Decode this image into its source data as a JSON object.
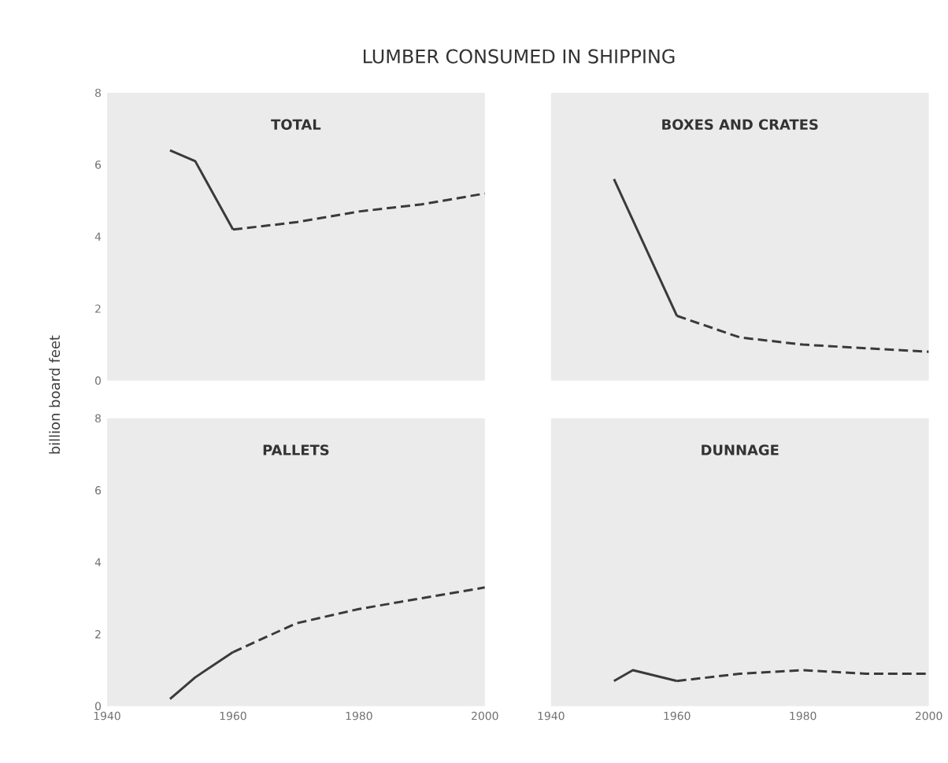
{
  "chart_data": [
    {
      "type": "line",
      "title": "LUMBER CONSUMED IN SHIPPING",
      "subtitle": "TOTAL",
      "ylabel": "billion board feet",
      "xlim": [
        1940,
        2000
      ],
      "ylim": [
        0,
        8
      ],
      "xticks": [
        1940,
        1960,
        1980,
        2000
      ],
      "yticks": [
        0,
        2,
        4,
        6,
        8
      ],
      "tick_labels": "y",
      "grid": false,
      "series": [
        {
          "color": "#3a3a3a",
          "line_style": "solid",
          "x": [
            1950,
            1954,
            1960
          ],
          "values": [
            6.4,
            6.1,
            4.2
          ]
        },
        {
          "color": "#3a3a3a",
          "line_style": "dashed",
          "x": [
            1960,
            1970,
            1980,
            1990,
            2000
          ],
          "values": [
            4.2,
            4.4,
            4.7,
            4.9,
            5.2
          ]
        }
      ]
    },
    {
      "type": "line",
      "subtitle": "BOXES AND CRATES",
      "xlim": [
        1940,
        2000
      ],
      "ylim": [
        0,
        8
      ],
      "xticks": [
        1940,
        1960,
        1980,
        2000
      ],
      "yticks": [
        0,
        2,
        4,
        6,
        8
      ],
      "tick_labels": false,
      "grid": false,
      "series": [
        {
          "color": "#3a3a3a",
          "line_style": "solid",
          "x": [
            1950,
            1960
          ],
          "values": [
            5.6,
            1.8
          ]
        },
        {
          "color": "#3a3a3a",
          "line_style": "dashed",
          "x": [
            1960,
            1970,
            1980,
            1990,
            2000
          ],
          "values": [
            1.8,
            1.2,
            1.0,
            0.9,
            0.8
          ]
        }
      ]
    },
    {
      "type": "line",
      "subtitle": "PALLETS",
      "xlim": [
        1940,
        2000
      ],
      "ylim": [
        0,
        8
      ],
      "xticks": [
        1940,
        1960,
        1980,
        2000
      ],
      "yticks": [
        0,
        2,
        4,
        6,
        8
      ],
      "grid": false,
      "series": [
        {
          "color": "#3a3a3a",
          "line_style": "solid",
          "x": [
            1950,
            1954,
            1960
          ],
          "values": [
            0.2,
            0.8,
            1.5
          ]
        },
        {
          "color": "#3a3a3a",
          "line_style": "dashed",
          "x": [
            1960,
            1970,
            1980,
            1990,
            2000
          ],
          "values": [
            1.5,
            2.3,
            2.7,
            3.0,
            3.3
          ]
        }
      ]
    },
    {
      "type": "line",
      "subtitle": "DUNNAGE",
      "xlim": [
        1940,
        2000
      ],
      "ylim": [
        0,
        8
      ],
      "xticks": [
        1940,
        1960,
        1980,
        2000
      ],
      "yticks": [
        0,
        2,
        4,
        6,
        8
      ],
      "tick_labels": "x",
      "grid": false,
      "series": [
        {
          "color": "#3a3a3a",
          "line_style": "solid",
          "x": [
            1950,
            1953,
            1960
          ],
          "values": [
            0.7,
            1.0,
            0.7
          ]
        },
        {
          "color": "#3a3a3a",
          "line_style": "dashed",
          "x": [
            1960,
            1970,
            1980,
            1990,
            2000
          ],
          "values": [
            0.7,
            0.9,
            1.0,
            0.9,
            0.9
          ]
        }
      ]
    }
  ]
}
